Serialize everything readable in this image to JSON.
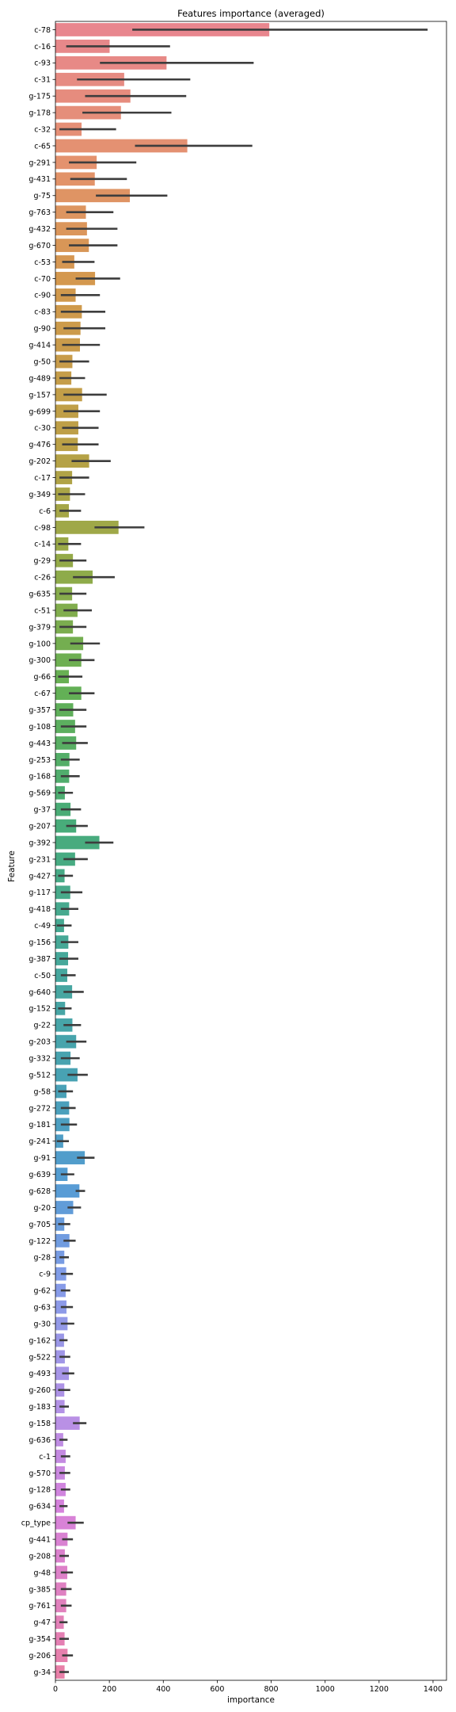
{
  "chart_data": {
    "type": "bar",
    "orientation": "horizontal",
    "title": "Features importance (averaged)",
    "xlabel": "importance",
    "ylabel": "Feature",
    "xlim": [
      0,
      1450
    ],
    "xticks": [
      0,
      200,
      400,
      600,
      800,
      1000,
      1200,
      1400
    ],
    "grid": false,
    "palette": "husl",
    "categories": [
      "c-78",
      "c-16",
      "c-93",
      "c-31",
      "g-175",
      "g-178",
      "c-32",
      "c-65",
      "g-291",
      "g-431",
      "g-75",
      "g-763",
      "g-432",
      "g-670",
      "c-53",
      "c-70",
      "c-90",
      "c-83",
      "g-90",
      "g-414",
      "g-50",
      "g-489",
      "g-157",
      "g-699",
      "c-30",
      "g-476",
      "g-202",
      "c-17",
      "g-349",
      "c-6",
      "c-98",
      "c-14",
      "g-29",
      "c-26",
      "g-635",
      "c-51",
      "g-379",
      "g-100",
      "g-300",
      "g-66",
      "c-67",
      "g-357",
      "g-108",
      "g-443",
      "g-253",
      "g-168",
      "g-569",
      "g-37",
      "g-207",
      "g-392",
      "g-231",
      "g-427",
      "g-117",
      "g-418",
      "c-49",
      "g-156",
      "g-387",
      "c-50",
      "g-640",
      "g-152",
      "g-22",
      "g-203",
      "g-332",
      "g-512",
      "g-58",
      "g-272",
      "g-181",
      "g-241",
      "g-91",
      "g-639",
      "g-628",
      "g-20",
      "g-705",
      "g-122",
      "g-28",
      "c-9",
      "g-62",
      "g-63",
      "g-30",
      "g-162",
      "g-522",
      "g-493",
      "g-260",
      "g-183",
      "g-158",
      "g-636",
      "c-1",
      "g-570",
      "g-128",
      "g-634",
      "cp_type",
      "g-441",
      "g-208",
      "g-48",
      "g-385",
      "g-761",
      "g-47",
      "g-354",
      "g-206",
      "g-34"
    ],
    "values": [
      793,
      201,
      412,
      255,
      278,
      243,
      97,
      489,
      153,
      146,
      276,
      113,
      117,
      124,
      70,
      147,
      75,
      98,
      93,
      91,
      63,
      59,
      99,
      85,
      85,
      83,
      125,
      62,
      54,
      50,
      234,
      48,
      65,
      138,
      62,
      82,
      65,
      103,
      96,
      50,
      96,
      66,
      73,
      77,
      52,
      51,
      35,
      56,
      77,
      163,
      73,
      34,
      55,
      51,
      32,
      48,
      47,
      44,
      62,
      36,
      63,
      77,
      56,
      82,
      41,
      51,
      52,
      29,
      109,
      45,
      89,
      66,
      33,
      52,
      33,
      40,
      38,
      41,
      45,
      32,
      35,
      50,
      33,
      34,
      90,
      29,
      38,
      35,
      38,
      32,
      75,
      45,
      35,
      44,
      40,
      40,
      31,
      34,
      45,
      34
    ],
    "errors": [
      [
        285,
        1380
      ],
      [
        40,
        425
      ],
      [
        165,
        735
      ],
      [
        80,
        500
      ],
      [
        110,
        485
      ],
      [
        100,
        430
      ],
      [
        15,
        225
      ],
      [
        295,
        730
      ],
      [
        50,
        300
      ],
      [
        55,
        265
      ],
      [
        150,
        415
      ],
      [
        40,
        215
      ],
      [
        40,
        230
      ],
      [
        50,
        230
      ],
      [
        25,
        145
      ],
      [
        75,
        240
      ],
      [
        20,
        165
      ],
      [
        20,
        185
      ],
      [
        30,
        185
      ],
      [
        25,
        165
      ],
      [
        15,
        125
      ],
      [
        15,
        110
      ],
      [
        30,
        190
      ],
      [
        30,
        165
      ],
      [
        25,
        160
      ],
      [
        25,
        160
      ],
      [
        60,
        205
      ],
      [
        15,
        125
      ],
      [
        10,
        110
      ],
      [
        15,
        95
      ],
      [
        145,
        330
      ],
      [
        10,
        95
      ],
      [
        15,
        115
      ],
      [
        65,
        220
      ],
      [
        15,
        115
      ],
      [
        30,
        135
      ],
      [
        15,
        115
      ],
      [
        55,
        165
      ],
      [
        50,
        145
      ],
      [
        10,
        100
      ],
      [
        50,
        145
      ],
      [
        15,
        115
      ],
      [
        20,
        115
      ],
      [
        25,
        120
      ],
      [
        20,
        90
      ],
      [
        20,
        90
      ],
      [
        10,
        65
      ],
      [
        20,
        95
      ],
      [
        40,
        120
      ],
      [
        110,
        215
      ],
      [
        30,
        120
      ],
      [
        10,
        65
      ],
      [
        20,
        100
      ],
      [
        20,
        85
      ],
      [
        5,
        60
      ],
      [
        20,
        85
      ],
      [
        15,
        85
      ],
      [
        20,
        75
      ],
      [
        30,
        105
      ],
      [
        10,
        60
      ],
      [
        30,
        95
      ],
      [
        40,
        115
      ],
      [
        20,
        90
      ],
      [
        45,
        120
      ],
      [
        10,
        65
      ],
      [
        20,
        75
      ],
      [
        20,
        80
      ],
      [
        5,
        50
      ],
      [
        80,
        145
      ],
      [
        20,
        70
      ],
      [
        75,
        110
      ],
      [
        45,
        95
      ],
      [
        10,
        55
      ],
      [
        30,
        75
      ],
      [
        15,
        50
      ],
      [
        20,
        65
      ],
      [
        20,
        55
      ],
      [
        20,
        65
      ],
      [
        20,
        70
      ],
      [
        15,
        45
      ],
      [
        15,
        55
      ],
      [
        25,
        70
      ],
      [
        10,
        55
      ],
      [
        15,
        50
      ],
      [
        65,
        115
      ],
      [
        15,
        45
      ],
      [
        20,
        55
      ],
      [
        15,
        55
      ],
      [
        20,
        55
      ],
      [
        15,
        45
      ],
      [
        45,
        105
      ],
      [
        25,
        65
      ],
      [
        15,
        50
      ],
      [
        20,
        65
      ],
      [
        20,
        60
      ],
      [
        20,
        60
      ],
      [
        15,
        45
      ],
      [
        15,
        50
      ],
      [
        25,
        65
      ],
      [
        15,
        50
      ]
    ]
  }
}
